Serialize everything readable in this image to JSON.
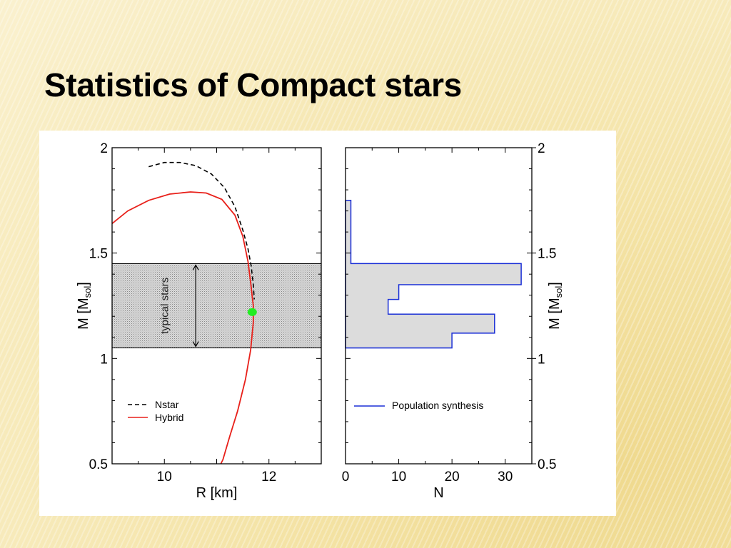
{
  "slide": {
    "title": "Statistics of Compact stars"
  },
  "chart_data": [
    {
      "type": "line",
      "xlabel": "R [km]",
      "ylabel": "M [M",
      "ylabel_sub": "sol",
      "ylabel_close": "]",
      "xlim": [
        9,
        13
      ],
      "ylim": [
        0.5,
        2
      ],
      "xticks": [
        10,
        12
      ],
      "yticks": [
        0.5,
        1,
        1.5,
        2
      ],
      "series": [
        {
          "name": "Nstar",
          "style": "dashed",
          "color": "#000000",
          "points": [
            [
              9.7,
              1.91
            ],
            [
              10.0,
              1.93
            ],
            [
              10.3,
              1.93
            ],
            [
              10.6,
              1.915
            ],
            [
              10.9,
              1.875
            ],
            [
              11.15,
              1.81
            ],
            [
              11.35,
              1.72
            ],
            [
              11.5,
              1.61
            ],
            [
              11.6,
              1.52
            ],
            [
              11.66,
              1.44
            ],
            [
              11.7,
              1.35
            ],
            [
              11.72,
              1.28
            ]
          ]
        },
        {
          "name": "Hybrid",
          "style": "solid",
          "color": "#e8201a",
          "points": [
            [
              9.0,
              1.64
            ],
            [
              9.3,
              1.7
            ],
            [
              9.7,
              1.75
            ],
            [
              10.1,
              1.78
            ],
            [
              10.5,
              1.79
            ],
            [
              10.8,
              1.785
            ],
            [
              11.1,
              1.755
            ],
            [
              11.35,
              1.68
            ],
            [
              11.5,
              1.58
            ],
            [
              11.6,
              1.46
            ],
            [
              11.65,
              1.36
            ],
            [
              11.7,
              1.25
            ],
            [
              11.7,
              1.17
            ],
            [
              11.65,
              1.04
            ],
            [
              11.55,
              0.9
            ],
            [
              11.4,
              0.75
            ],
            [
              11.25,
              0.63
            ],
            [
              11.12,
              0.52
            ],
            [
              11.08,
              0.5
            ]
          ]
        }
      ],
      "band": {
        "ymin": 1.05,
        "ymax": 1.45,
        "label": "typical stars"
      },
      "marker": {
        "x": 11.68,
        "y": 1.22,
        "color": "#22ee22"
      },
      "legend": "bottom-left"
    },
    {
      "type": "histogram",
      "orientation": "horizontal",
      "xlabel": "N",
      "ylabel": "M [M",
      "ylabel_sub": "sol",
      "ylabel_close": "]",
      "xlim": [
        0,
        35
      ],
      "ylim": [
        0.5,
        2
      ],
      "xticks": [
        0,
        10,
        20,
        30
      ],
      "yticks": [
        0.5,
        1,
        1.5,
        2
      ],
      "bins": [
        {
          "m_from": 1.05,
          "m_to": 1.12,
          "n": 20
        },
        {
          "m_from": 1.12,
          "m_to": 1.21,
          "n": 28
        },
        {
          "m_from": 1.21,
          "m_to": 1.28,
          "n": 8
        },
        {
          "m_from": 1.28,
          "m_to": 1.35,
          "n": 10
        },
        {
          "m_from": 1.35,
          "m_to": 1.45,
          "n": 33
        },
        {
          "m_from": 1.45,
          "m_to": 1.75,
          "n": 1
        }
      ],
      "series": [
        {
          "name": "Population synthesis",
          "color": "#1a2fd6"
        }
      ],
      "legend": "bottom-left"
    }
  ]
}
